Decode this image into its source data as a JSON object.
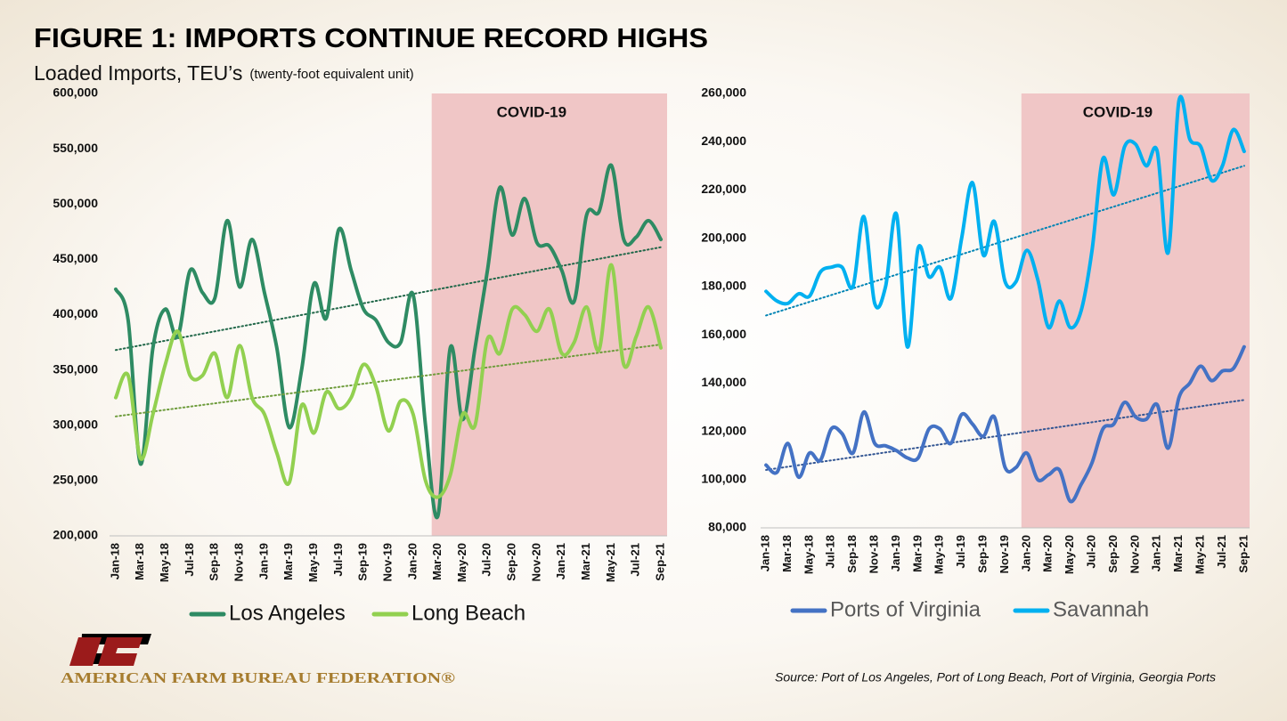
{
  "title": "FIGURE 1: IMPORTS CONTINUE RECORD HIGHS",
  "subtitle": "Loaded Imports, TEU’s",
  "subtitle_note": "(twenty-foot equivalent unit)",
  "source": "Source: Port of Los Angeles, Port of Long Beach, Port of Virginia, Georgia Ports",
  "organization": "AMERICAN FARM BUREAU FEDERATION®",
  "chart_data": [
    {
      "type": "line",
      "categories": [
        "Jan-18",
        null,
        "Mar-18",
        null,
        "May-18",
        null,
        "Jul-18",
        null,
        "Sep-18",
        null,
        "Nov-18",
        null,
        "Jan-19",
        null,
        "Mar-19",
        null,
        "May-19",
        null,
        "Jul-19",
        null,
        "Sep-19",
        null,
        "Nov-19",
        null,
        "Jan-20",
        null,
        "Mar-20",
        null,
        "May-20",
        null,
        "Jul-20",
        null,
        "Sep-20",
        null,
        "Nov-20",
        null,
        "Jan-21",
        null,
        "Mar-21",
        null,
        "May-21",
        null,
        "Jul-21",
        null,
        "Sep-21"
      ],
      "series": [
        {
          "name": "Los Angeles",
          "color": "#2e8b63",
          "trend": [
            368000,
            461000
          ],
          "values": [
            423000,
            395000,
            265000,
            370000,
            405000,
            380000,
            440000,
            420000,
            415000,
            485000,
            425000,
            468000,
            420000,
            370000,
            298000,
            350000,
            428000,
            397000,
            477000,
            440000,
            405000,
            395000,
            375000,
            375000,
            418000,
            300000,
            218000,
            370000,
            305000,
            370000,
            440000,
            515000,
            472000,
            505000,
            465000,
            462000,
            440000,
            412000,
            490000,
            493000,
            535000,
            468000,
            470000,
            485000,
            468000
          ]
        },
        {
          "name": "Long Beach",
          "color": "#92d050",
          "trend": [
            308000,
            373000
          ],
          "values": [
            325000,
            345000,
            270000,
            310000,
            355000,
            385000,
            345000,
            345000,
            365000,
            325000,
            372000,
            325000,
            310000,
            275000,
            248000,
            318000,
            293000,
            330000,
            315000,
            325000,
            355000,
            335000,
            295000,
            322000,
            310000,
            250000,
            235000,
            255000,
            310000,
            300000,
            378000,
            365000,
            405000,
            400000,
            385000,
            405000,
            365000,
            375000,
            407000,
            368000,
            445000,
            355000,
            380000,
            407000,
            370000
          ]
        }
      ],
      "ylim": [
        200000,
        600000
      ],
      "yticks": [
        {
          "value": 200000,
          "label": "200,000"
        },
        {
          "value": 250000,
          "label": "250,000"
        },
        {
          "value": 300000,
          "label": "300,000"
        },
        {
          "value": 350000,
          "label": "350,000"
        },
        {
          "value": 400000,
          "label": "400,000"
        },
        {
          "value": 450000,
          "label": "450,000"
        },
        {
          "value": 500000,
          "label": "500,000"
        },
        {
          "value": 550000,
          "label": "550,000"
        },
        {
          "value": 600000,
          "label": "600,000"
        }
      ],
      "grid": false,
      "legend": "bottom",
      "annotation": {
        "text": "COVID-19",
        "start": "Mar-20",
        "color": "#f0c6c6"
      }
    },
    {
      "type": "line",
      "categories": [
        "Jan-18",
        null,
        "Mar-18",
        null,
        "May-18",
        null,
        "Jul-18",
        null,
        "Sep-18",
        null,
        "Nov-18",
        null,
        "Jan-19",
        null,
        "Mar-19",
        null,
        "May-19",
        null,
        "Jul-19",
        null,
        "Sep-19",
        null,
        "Nov-19",
        null,
        "Jan-20",
        null,
        "Mar-20",
        null,
        "May-20",
        null,
        "Jul-20",
        null,
        "Sep-20",
        null,
        "Nov-20",
        null,
        "Jan-21",
        null,
        "Mar-21",
        null,
        "May-21",
        null,
        "Jul-21",
        null,
        "Sep-21"
      ],
      "series": [
        {
          "name": "Ports of Virginia",
          "color": "#4472c4",
          "trend": [
            104000,
            133000
          ],
          "values": [
            106000,
            103000,
            115000,
            101000,
            111000,
            108000,
            121000,
            119000,
            111000,
            128000,
            115000,
            114000,
            112000,
            109000,
            109000,
            121000,
            121000,
            115000,
            127000,
            123000,
            118000,
            126000,
            105000,
            105000,
            111000,
            100000,
            102000,
            104000,
            91000,
            98000,
            107000,
            121000,
            123000,
            132000,
            126000,
            125000,
            131000,
            113000,
            134000,
            140000,
            147000,
            141000,
            145000,
            146000,
            155000
          ]
        },
        {
          "name": "Savannah",
          "color": "#00b0f0",
          "trend": [
            168000,
            230000
          ],
          "values": [
            178000,
            174000,
            173000,
            177000,
            176000,
            186000,
            188000,
            188000,
            180000,
            209000,
            173000,
            180000,
            210000,
            155000,
            196000,
            184000,
            188000,
            175000,
            200000,
            223000,
            193000,
            207000,
            182000,
            182000,
            195000,
            183000,
            163000,
            174000,
            163000,
            170000,
            195000,
            233000,
            218000,
            238000,
            239000,
            230000,
            236000,
            194000,
            257000,
            241000,
            238000,
            224000,
            230000,
            245000,
            236000
          ]
        }
      ],
      "ylim": [
        80000,
        260000
      ],
      "yticks": [
        {
          "value": 80000,
          "label": "80,000"
        },
        {
          "value": 100000,
          "label": "100,000"
        },
        {
          "value": 120000,
          "label": "120,000"
        },
        {
          "value": 140000,
          "label": "140,000"
        },
        {
          "value": 160000,
          "label": "160,000"
        },
        {
          "value": 180000,
          "label": "180,000"
        },
        {
          "value": 200000,
          "label": "200,000"
        },
        {
          "value": 220000,
          "label": "220,000"
        },
        {
          "value": 240000,
          "label": "240,000"
        },
        {
          "value": 260000,
          "label": "260,000"
        }
      ],
      "grid": false,
      "legend": "bottom",
      "annotation": {
        "text": "COVID-19",
        "start": "Jan-20",
        "color": "#f0c6c6"
      }
    }
  ]
}
